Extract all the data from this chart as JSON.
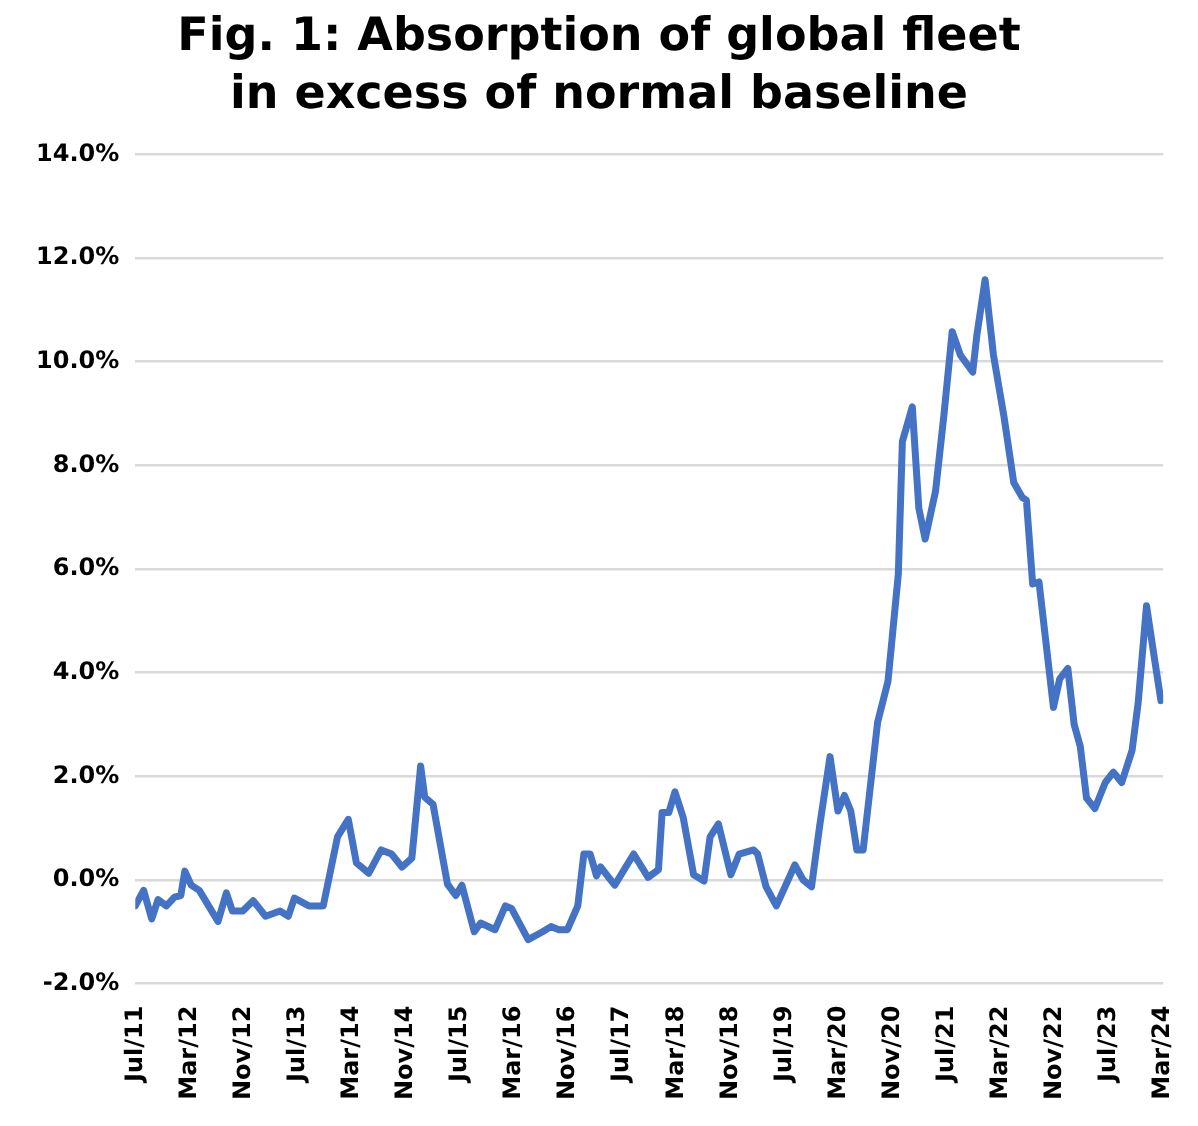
{
  "chart_data": {
    "type": "line",
    "title": "Fig. 1: Absorption of global fleet in excess of normal baseline",
    "x": [
      "2011-07-01",
      "2011-08-08",
      "2011-09-14",
      "2011-10-12",
      "2011-11-19",
      "2011-12-25",
      "2012-01-23",
      "2012-02-11",
      "2012-03-09",
      "2012-04-15",
      "2012-07-08",
      "2012-08-15",
      "2012-09-12",
      "2012-10-28",
      "2012-12-14",
      "2013-02-09",
      "2013-04-13",
      "2013-05-20",
      "2013-06-17",
      "2013-08-21",
      "2013-10-25",
      "2013-12-28",
      "2014-02-16",
      "2014-03-22",
      "2014-05-17",
      "2014-07-12",
      "2014-08-28",
      "2014-10-14",
      "2014-11-28",
      "2015-01-07",
      "2015-01-25",
      "2015-03-02",
      "2015-05-06",
      "2015-06-13",
      "2015-07-10",
      "2015-09-05",
      "2015-10-03",
      "2015-12-07",
      "2016-01-23",
      "2016-02-20",
      "2016-05-04",
      "2016-07-08",
      "2016-08-15",
      "2016-09-21",
      "2016-10-28",
      "2016-12-14",
      "2017-01-11",
      "2017-02-09",
      "2017-03-07",
      "2017-03-25",
      "2017-05-28",
      "2017-08-22",
      "2017-10-26",
      "2017-12-12",
      "2017-12-28",
      "2018-01-28",
      "2018-02-25",
      "2018-04-02",
      "2018-05-18",
      "2018-07-04",
      "2018-08-01",
      "2018-09-08",
      "2018-11-03",
      "2018-12-10",
      "2019-02-14",
      "2019-03-02",
      "2019-04-09",
      "2019-05-25",
      "2019-08-17",
      "2019-09-24",
      "2019-11-01",
      "2019-12-07",
      "2020-01-23",
      "2020-02-28",
      "2020-03-27",
      "2020-04-25",
      "2020-05-22",
      "2020-06-20",
      "2020-08-24",
      "2020-10-10",
      "2020-11-26",
      "2020-12-14",
      "2021-01-28",
      "2021-02-27",
      "2021-03-25",
      "2021-05-11",
      "2021-06-18",
      "2021-07-25",
      "2021-09-01",
      "2021-10-26",
      "2021-11-14",
      "2021-12-21",
      "2022-01-28",
      "2022-03-14",
      "2022-04-28",
      "2022-06-06",
      "2022-06-24",
      "2022-07-22",
      "2022-08-20",
      "2022-10-24",
      "2022-11-22",
      "2022-12-28",
      "2023-01-26",
      "2023-02-23",
      "2023-03-21",
      "2023-04-28",
      "2023-06-14",
      "2023-07-20",
      "2023-08-27",
      "2023-10-13",
      "2023-11-10",
      "2023-12-17",
      "2024-01-23",
      "2024-02-21",
      "2024-03-01"
    ],
    "series": [
      {
        "color": "#4472c4",
        "values": [
          -0.5,
          -0.2,
          -0.75,
          -0.38,
          -0.5,
          -0.33,
          -0.3,
          0.17,
          -0.1,
          -0.2,
          -0.8,
          -0.25,
          -0.6,
          -0.6,
          -0.4,
          -0.7,
          -0.6,
          -0.7,
          -0.35,
          -0.5,
          -0.5,
          0.83,
          1.17,
          0.33,
          0.13,
          0.58,
          0.5,
          0.25,
          0.42,
          2.2,
          1.6,
          1.46,
          -0.08,
          -0.3,
          -0.1,
          -1.0,
          -0.83,
          -0.96,
          -0.5,
          -0.55,
          -1.15,
          -1.0,
          -0.9,
          -0.96,
          -0.96,
          -0.5,
          0.5,
          0.5,
          0.08,
          0.25,
          -0.1,
          0.5,
          0.05,
          0.2,
          1.3,
          1.3,
          1.7,
          1.2,
          0.1,
          -0.02,
          0.83,
          1.08,
          0.1,
          0.5,
          0.58,
          0.5,
          -0.13,
          -0.5,
          0.29,
          0,
          -0.13,
          1.04,
          2.38,
          1.33,
          1.63,
          1.33,
          0.58,
          0.58,
          3.04,
          3.83,
          5.9,
          8.46,
          9.13,
          7.17,
          6.58,
          7.5,
          8.96,
          10.58,
          10.13,
          9.8,
          10.5,
          11.58,
          10.13,
          8.96,
          7.67,
          7.38,
          7.33,
          5.71,
          5.75,
          3.33,
          3.88,
          4.08,
          3.0,
          2.58,
          1.58,
          1.38,
          1.88,
          2.08,
          1.88,
          2.5,
          3.42,
          5.29,
          4.25,
          3.46,
          3.5
        ]
      }
    ],
    "xlim": [
      "2011-07",
      "2024-03"
    ],
    "xticks": [
      {
        "value": "2011-07",
        "label": "Jul/11"
      },
      {
        "value": "2012-03",
        "label": "Mar/12"
      },
      {
        "value": "2012-11",
        "label": "Nov/12"
      },
      {
        "value": "2013-07",
        "label": "Jul/13"
      },
      {
        "value": "2014-03",
        "label": "Mar/14"
      },
      {
        "value": "2014-11",
        "label": "Nov/14"
      },
      {
        "value": "2015-07",
        "label": "Jul/15"
      },
      {
        "value": "2016-03",
        "label": "Mar/16"
      },
      {
        "value": "2016-11",
        "label": "Nov/16"
      },
      {
        "value": "2017-07",
        "label": "Jul/17"
      },
      {
        "value": "2018-03",
        "label": "Mar/18"
      },
      {
        "value": "2018-11",
        "label": "Nov/18"
      },
      {
        "value": "2019-07",
        "label": "Jul/19"
      },
      {
        "value": "2020-03",
        "label": "Mar/20"
      },
      {
        "value": "2020-11",
        "label": "Nov/20"
      },
      {
        "value": "2021-07",
        "label": "Jul/21"
      },
      {
        "value": "2022-03",
        "label": "Mar/22"
      },
      {
        "value": "2022-11",
        "label": "Nov/22"
      },
      {
        "value": "2023-07",
        "label": "Jul/23"
      },
      {
        "value": "2024-03",
        "label": "Mar/24"
      }
    ],
    "ylim": [
      -2,
      14
    ],
    "yticks": [
      {
        "value": -2,
        "label": "-2.0%"
      },
      {
        "value": 0,
        "label": "0.0%"
      },
      {
        "value": 2,
        "label": "2.0%"
      },
      {
        "value": 4,
        "label": "4.0%"
      },
      {
        "value": 6,
        "label": "6.0%"
      },
      {
        "value": 8,
        "label": "8.0%"
      },
      {
        "value": 10,
        "label": "10.0%"
      },
      {
        "value": 12,
        "label": "12.0%"
      },
      {
        "value": 14,
        "label": "14.0%"
      }
    ],
    "grid": "y",
    "marker": "none",
    "line_style": "solid",
    "legend": false
  }
}
